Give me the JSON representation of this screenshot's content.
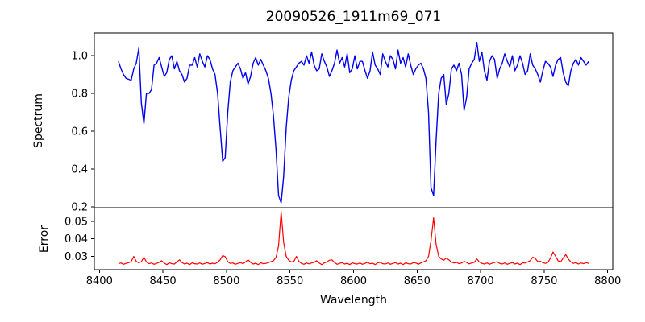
{
  "figure": {
    "title": "20090526_1911m69_071"
  },
  "chart_data": {
    "type": "line",
    "title": "20090526_1911m69_071",
    "xlabel": "Wavelength",
    "xlim": [
      8396,
      8804
    ],
    "xticks": [
      8400,
      8450,
      8500,
      8550,
      8600,
      8650,
      8700,
      8750,
      8800
    ],
    "x_start": 8415,
    "x_step": 2,
    "grid": false,
    "legend": "none",
    "panels": [
      {
        "name": "spectrum",
        "ylabel": "Spectrum",
        "color": "#0000ee",
        "ylim": [
          0.195,
          1.12
        ],
        "yticks": [
          0.2,
          0.4,
          0.6,
          0.8,
          1.0
        ],
        "ytick_labels": [
          "0.2",
          "0.4",
          "0.6",
          "0.8",
          "1.0"
        ],
        "values": [
          0.97,
          0.93,
          0.9,
          0.88,
          0.875,
          0.87,
          0.93,
          0.96,
          1.04,
          0.75,
          0.64,
          0.8,
          0.8,
          0.82,
          0.95,
          0.96,
          0.99,
          0.94,
          0.89,
          0.91,
          0.98,
          1.0,
          0.93,
          0.97,
          0.92,
          0.9,
          0.86,
          0.88,
          0.95,
          0.95,
          0.99,
          0.94,
          1.01,
          0.97,
          0.94,
          1.0,
          0.98,
          0.93,
          0.9,
          0.8,
          0.62,
          0.44,
          0.46,
          0.7,
          0.86,
          0.92,
          0.94,
          0.96,
          0.93,
          0.88,
          0.91,
          0.85,
          0.89,
          0.96,
          0.99,
          0.95,
          0.98,
          0.95,
          0.92,
          0.88,
          0.8,
          0.68,
          0.5,
          0.26,
          0.22,
          0.36,
          0.62,
          0.78,
          0.87,
          0.92,
          0.94,
          0.96,
          0.97,
          0.95,
          1.0,
          0.96,
          1.02,
          0.95,
          0.92,
          0.93,
          1.01,
          0.97,
          0.94,
          0.89,
          0.92,
          0.96,
          1.03,
          0.96,
          0.99,
          0.94,
          1.01,
          0.91,
          0.93,
          1.0,
          0.93,
          0.97,
          0.97,
          0.92,
          0.88,
          0.92,
          1.02,
          0.95,
          0.93,
          0.9,
          1.01,
          0.97,
          0.94,
          1.0,
          0.98,
          0.93,
          1.03,
          0.96,
          0.99,
          0.94,
          1.01,
          0.95,
          0.9,
          0.93,
          0.95,
          0.96,
          0.93,
          0.88,
          0.7,
          0.3,
          0.26,
          0.55,
          0.8,
          0.88,
          0.9,
          0.74,
          0.8,
          0.93,
          0.95,
          0.92,
          0.96,
          0.9,
          0.71,
          0.78,
          0.93,
          0.96,
          0.98,
          1.07,
          0.97,
          1.02,
          0.92,
          0.87,
          0.97,
          1.0,
          0.98,
          0.88,
          0.93,
          0.96,
          1.01,
          0.97,
          0.94,
          1.0,
          0.92,
          0.95,
          1.0,
          0.96,
          0.9,
          0.92,
          1.01,
          0.95,
          0.93,
          0.9,
          0.86,
          0.92,
          0.97,
          0.96,
          0.94,
          0.89,
          0.95,
          0.98,
          0.99,
          0.91,
          0.86,
          0.84,
          0.92,
          0.96,
          0.98,
          0.95,
          0.99,
          0.97,
          0.95,
          0.97
        ]
      },
      {
        "name": "error",
        "ylabel": "Error",
        "color": "#ff0000",
        "ylim": [
          0.0224,
          0.0578
        ],
        "yticks": [
          0.03,
          0.04,
          0.05
        ],
        "ytick_labels": [
          "0.03",
          "0.04",
          "0.05"
        ],
        "values": [
          0.0258,
          0.0262,
          0.0255,
          0.026,
          0.0264,
          0.027,
          0.03,
          0.0272,
          0.0263,
          0.027,
          0.0295,
          0.0268,
          0.0258,
          0.0262,
          0.0255,
          0.026,
          0.0266,
          0.0275,
          0.0262,
          0.0253,
          0.0263,
          0.0258,
          0.0256,
          0.0268,
          0.028,
          0.0265,
          0.0256,
          0.0261,
          0.0253,
          0.0263,
          0.0258,
          0.0256,
          0.0262,
          0.0255,
          0.026,
          0.0264,
          0.0256,
          0.0261,
          0.0258,
          0.0266,
          0.028,
          0.0305,
          0.0298,
          0.027,
          0.026,
          0.0262,
          0.0255,
          0.026,
          0.0264,
          0.0258,
          0.0268,
          0.028,
          0.0266,
          0.0256,
          0.0261,
          0.0253,
          0.0263,
          0.0258,
          0.026,
          0.0264,
          0.027,
          0.0275,
          0.0295,
          0.036,
          0.0555,
          0.038,
          0.03,
          0.0278,
          0.0268,
          0.027,
          0.03,
          0.0272,
          0.026,
          0.0255,
          0.0262,
          0.0257,
          0.0262,
          0.0266,
          0.0275,
          0.0262,
          0.0253,
          0.0263,
          0.0268,
          0.0278,
          0.028,
          0.0265,
          0.0255,
          0.026,
          0.0264,
          0.0256,
          0.0261,
          0.0253,
          0.0263,
          0.0258,
          0.0256,
          0.0262,
          0.0255,
          0.026,
          0.0266,
          0.0258,
          0.0261,
          0.0253,
          0.0263,
          0.0266,
          0.0258,
          0.0256,
          0.0262,
          0.0255,
          0.026,
          0.0264,
          0.0256,
          0.0261,
          0.0253,
          0.0263,
          0.0258,
          0.0256,
          0.0264,
          0.0262,
          0.0255,
          0.0262,
          0.0268,
          0.0275,
          0.03,
          0.039,
          0.052,
          0.037,
          0.03,
          0.0285,
          0.0278,
          0.029,
          0.028,
          0.0268,
          0.0262,
          0.0266,
          0.0258,
          0.0262,
          0.0272,
          0.0265,
          0.0257,
          0.0262,
          0.0266,
          0.0285,
          0.0268,
          0.026,
          0.0256,
          0.0262,
          0.0255,
          0.0261,
          0.0265,
          0.027,
          0.026,
          0.0256,
          0.0262,
          0.0255,
          0.026,
          0.0264,
          0.0256,
          0.0261,
          0.0253,
          0.0263,
          0.0262,
          0.0268,
          0.0275,
          0.0295,
          0.0288,
          0.027,
          0.0272,
          0.0264,
          0.026,
          0.0266,
          0.029,
          0.0325,
          0.03,
          0.0275,
          0.0268,
          0.029,
          0.031,
          0.0285,
          0.0268,
          0.026,
          0.0264,
          0.0256,
          0.0262,
          0.0258,
          0.0264,
          0.026
        ]
      }
    ],
    "spectral_features": {
      "deep_absorption_lines": [
        {
          "wavelength": 8435,
          "min_flux": 0.64
        },
        {
          "wavelength": 8498,
          "min_flux": 0.44
        },
        {
          "wavelength": 8542,
          "min_flux": 0.22
        },
        {
          "wavelength": 8662,
          "min_flux": 0.26
        }
      ],
      "error_peaks": [
        {
          "wavelength": 8542,
          "max_error": 0.0555
        },
        {
          "wavelength": 8662,
          "max_error": 0.052
        }
      ]
    }
  }
}
